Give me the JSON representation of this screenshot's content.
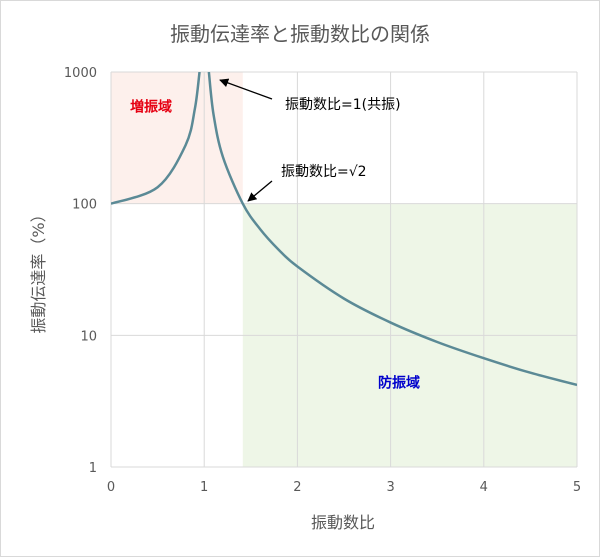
{
  "chart_data": {
    "type": "line",
    "title": "振動伝達率と振動数比の関係",
    "xlabel": "振動数比",
    "ylabel": "振動伝達率（%）",
    "x_scale": "linear",
    "y_scale": "log",
    "xlim": [
      0,
      5
    ],
    "ylim": [
      1,
      1000
    ],
    "x_ticks": [
      "0",
      "1",
      "2",
      "3",
      "4",
      "5"
    ],
    "y_ticks": [
      "1",
      "10",
      "100",
      "1000"
    ],
    "grid": true,
    "legend": "none",
    "series": [
      {
        "color": "#5b8a96",
        "x": [
          0,
          0.5,
          0.8,
          0.9,
          0.95,
          1.05,
          1.1,
          1.2,
          1.414,
          1.6,
          1.8,
          2,
          2.5,
          3,
          3.5,
          4,
          4.5,
          5
        ],
        "y": [
          100,
          133.3,
          277.8,
          526.3,
          1000,
          1000,
          476.2,
          227.3,
          100,
          64.1,
          44.6,
          33.3,
          19,
          12.5,
          8.9,
          6.7,
          5.2,
          4.2
        ]
      }
    ],
    "regions": [
      {
        "label": "増振域",
        "x": [
          0,
          1.414
        ],
        "y": [
          100,
          1000
        ],
        "fill": "#fdf0ec",
        "label_color": "#e60012"
      },
      {
        "label": "防振域",
        "x": [
          1.414,
          5
        ],
        "y": [
          1,
          100
        ],
        "fill": "#eef6e7",
        "label_color": "#0000cc"
      }
    ],
    "annotations": [
      {
        "text": "振動数比=1(共振)",
        "x": 1.0,
        "y": 1000
      },
      {
        "text": "振動数比=√2",
        "x": 1.414,
        "y": 100
      }
    ]
  }
}
